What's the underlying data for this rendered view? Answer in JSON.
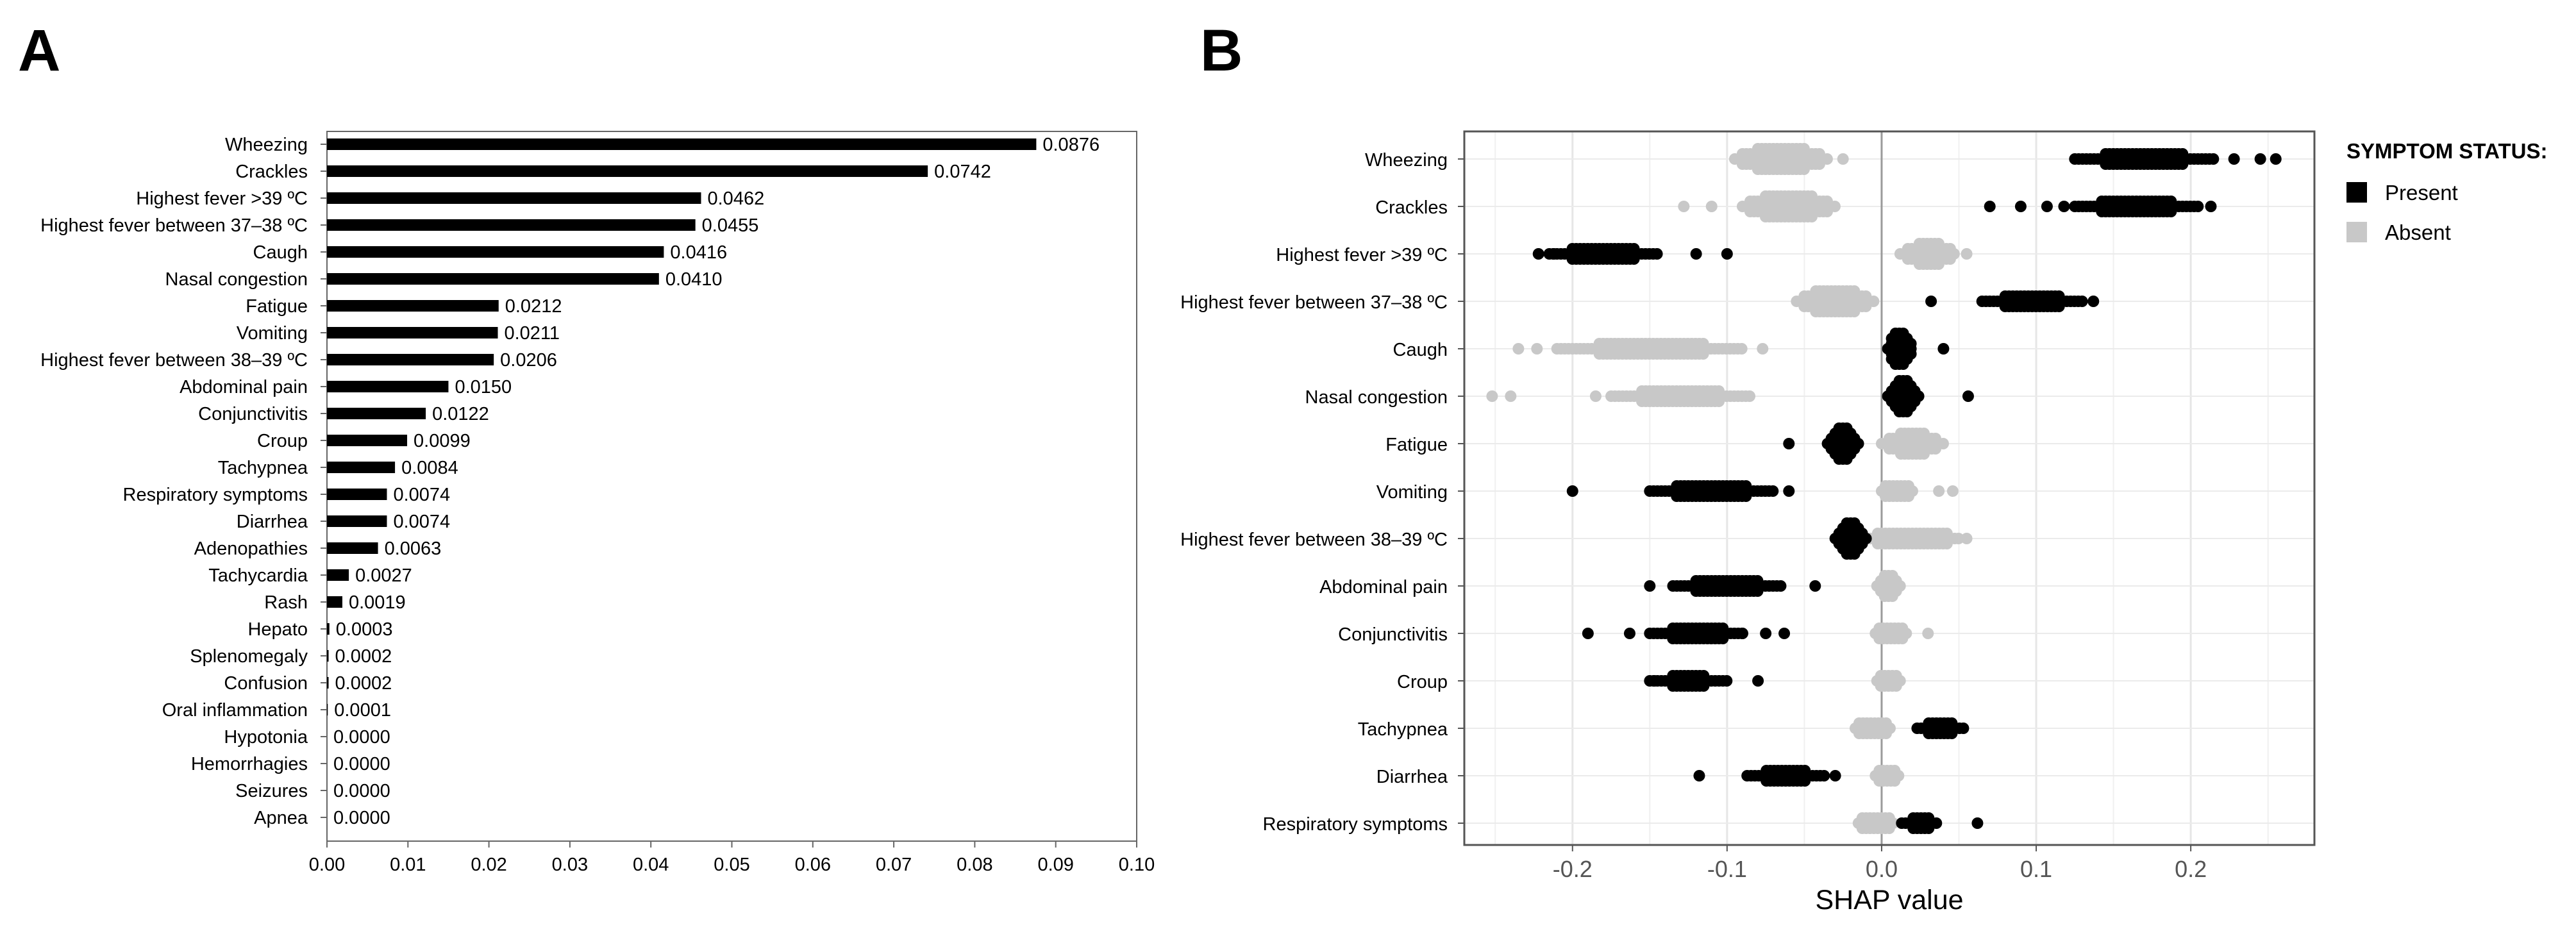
{
  "panels": {
    "a": "A",
    "b": "B"
  },
  "chart_data": [
    {
      "type": "bar",
      "orientation": "horizontal",
      "panel": "A",
      "title": "",
      "xlabel": "",
      "ylabel": "",
      "xlim": [
        0.0,
        0.1
      ],
      "xticks": [
        "0.00",
        "0.01",
        "0.02",
        "0.03",
        "0.04",
        "0.05",
        "0.06",
        "0.07",
        "0.08",
        "0.09",
        "0.10"
      ],
      "categories": [
        "Wheezing",
        "Crackles",
        "Highest fever >39 ºC",
        "Highest fever between 37–38 ºC",
        "Caugh",
        "Nasal congestion",
        "Fatigue",
        "Vomiting",
        "Highest fever between 38–39 ºC",
        "Abdominal pain",
        "Conjunctivitis",
        "Croup",
        "Tachypnea",
        "Respiratory symptoms",
        "Diarrhea ",
        "Adenopathies",
        "Tachycardia",
        "Rash",
        "Hepato",
        "Splenomegaly",
        "Confusion",
        "Oral inflammation",
        "Hypotonia",
        "Hemorrhagies",
        "Seizures",
        "Apnea"
      ],
      "values": [
        0.0876,
        0.0742,
        0.0462,
        0.0455,
        0.0416,
        0.041,
        0.0212,
        0.0211,
        0.0206,
        0.015,
        0.0122,
        0.0099,
        0.0084,
        0.0074,
        0.0074,
        0.0063,
        0.0027,
        0.0019,
        0.0003,
        0.0002,
        0.0002,
        0.0001,
        0.0,
        0.0,
        0.0,
        0.0
      ],
      "value_labels": [
        "0.0876",
        "0.0742",
        "0.0462",
        "0.0455",
        "0.0416",
        "0.0410",
        "0.0212",
        "0.0211",
        "0.0206",
        "0.0150",
        "0.0122",
        "0.0099",
        "0.0084",
        "0.0074",
        "0.0074",
        "0.0063",
        "0.0027",
        "0.0019",
        "0.0003",
        "0.0002",
        "0.0002",
        "0.0001",
        "0.0000",
        "0.0000",
        "0.0000",
        "0.0000"
      ],
      "bar_color": "#000000"
    },
    {
      "type": "scatter",
      "subtype": "beeswarm",
      "panel": "B",
      "title": "",
      "xlabel": "SHAP value",
      "ylabel": "",
      "xlim": [
        -0.27,
        0.28
      ],
      "xticks": [
        -0.2,
        -0.1,
        0.0,
        0.1,
        0.2
      ],
      "xtick_labels": [
        "-0.2",
        "-0.1",
        "0.0",
        "0.1",
        "0.2"
      ],
      "grid": true,
      "legend": {
        "title": "SYMPTOM STATUS:",
        "position": "right",
        "items": [
          {
            "name": "Present",
            "color": "#000000"
          },
          {
            "name": "Absent",
            "color": "#c8c8c8"
          }
        ]
      },
      "categories": [
        "Wheezing",
        "Crackles",
        "Highest fever >39 ºC",
        "Highest fever between 37–38 ºC",
        "Caugh",
        "Nasal congestion",
        "Fatigue",
        "Vomiting",
        "Highest fever between 38–39 ºC",
        "Abdominal pain",
        "Conjunctivitis",
        "Croup",
        "Tachypnea",
        "Diarrhea",
        "Respiratory symptoms"
      ],
      "series": [
        {
          "name": "Present",
          "color": "#000000",
          "clusters": [
            {
              "row": 0,
              "center": 0.17,
              "halfwidth": 0.045,
              "spread": 0.5
            },
            {
              "row": 1,
              "center": 0.165,
              "halfwidth": 0.04,
              "spread": 0.5
            },
            {
              "row": 2,
              "center": -0.18,
              "halfwidth": 0.035,
              "spread": 0.5
            },
            {
              "row": 3,
              "center": 0.098,
              "halfwidth": 0.033,
              "spread": 0.5
            },
            {
              "row": 4,
              "center": 0.012,
              "halfwidth": 0.008,
              "spread": 2.1
            },
            {
              "row": 5,
              "center": 0.014,
              "halfwidth": 0.01,
              "spread": 2.1
            },
            {
              "row": 6,
              "center": -0.025,
              "halfwidth": 0.01,
              "spread": 1.8
            },
            {
              "row": 7,
              "center": -0.11,
              "halfwidth": 0.04,
              "spread": 0.5
            },
            {
              "row": 8,
              "center": -0.02,
              "halfwidth": 0.01,
              "spread": 2.0
            },
            {
              "row": 9,
              "center": -0.1,
              "halfwidth": 0.035,
              "spread": 0.5
            },
            {
              "row": 10,
              "center": -0.12,
              "halfwidth": 0.03,
              "spread": 0.5
            },
            {
              "row": 11,
              "center": -0.125,
              "halfwidth": 0.025,
              "spread": 0.4
            },
            {
              "row": 12,
              "center": 0.038,
              "halfwidth": 0.015,
              "spread": 0.5
            },
            {
              "row": 13,
              "center": -0.062,
              "halfwidth": 0.025,
              "spread": 0.5
            },
            {
              "row": 14,
              "center": 0.025,
              "halfwidth": 0.012,
              "spread": 0.5
            }
          ],
          "outliers": [
            {
              "row": 0,
              "x": 0.245
            },
            {
              "row": 0,
              "x": 0.255
            },
            {
              "row": 0,
              "x": 0.228
            },
            {
              "row": 1,
              "x": 0.07
            },
            {
              "row": 1,
              "x": 0.09
            },
            {
              "row": 1,
              "x": 0.107
            },
            {
              "row": 1,
              "x": 0.118
            },
            {
              "row": 1,
              "x": 0.213
            },
            {
              "row": 2,
              "x": -0.222
            },
            {
              "row": 2,
              "x": -0.212
            },
            {
              "row": 2,
              "x": -0.12
            },
            {
              "row": 2,
              "x": -0.1
            },
            {
              "row": 3,
              "x": 0.032
            },
            {
              "row": 3,
              "x": 0.137
            },
            {
              "row": 4,
              "x": 0.04
            },
            {
              "row": 5,
              "x": 0.056
            },
            {
              "row": 6,
              "x": -0.06
            },
            {
              "row": 7,
              "x": -0.2
            },
            {
              "row": 7,
              "x": -0.06
            },
            {
              "row": 9,
              "x": -0.15
            },
            {
              "row": 9,
              "x": -0.043
            },
            {
              "row": 10,
              "x": -0.19
            },
            {
              "row": 10,
              "x": -0.163
            },
            {
              "row": 10,
              "x": -0.09
            },
            {
              "row": 10,
              "x": -0.075
            },
            {
              "row": 10,
              "x": -0.063
            },
            {
              "row": 11,
              "x": -0.147
            },
            {
              "row": 11,
              "x": -0.08
            },
            {
              "row": 13,
              "x": -0.118
            },
            {
              "row": 13,
              "x": -0.03
            },
            {
              "row": 14,
              "x": 0.062
            }
          ]
        },
        {
          "name": "Absent",
          "color": "#c8c8c8",
          "clusters": [
            {
              "row": 0,
              "center": -0.065,
              "halfwidth": 0.03,
              "spread": 1.4
            },
            {
              "row": 1,
              "center": -0.06,
              "halfwidth": 0.03,
              "spread": 1.4
            },
            {
              "row": 2,
              "center": 0.03,
              "halfwidth": 0.018,
              "spread": 1.2
            },
            {
              "row": 3,
              "center": -0.03,
              "halfwidth": 0.025,
              "spread": 1.4
            },
            {
              "row": 4,
              "center": -0.15,
              "halfwidth": 0.06,
              "spread": 0.5
            },
            {
              "row": 5,
              "center": -0.13,
              "halfwidth": 0.045,
              "spread": 0.5
            },
            {
              "row": 6,
              "center": 0.02,
              "halfwidth": 0.02,
              "spread": 1.3
            },
            {
              "row": 7,
              "center": 0.01,
              "halfwidth": 0.01,
              "spread": 1.0
            },
            {
              "row": 8,
              "center": 0.02,
              "halfwidth": 0.03,
              "spread": 0.8
            },
            {
              "row": 9,
              "center": 0.005,
              "halfwidth": 0.008,
              "spread": 1.2
            },
            {
              "row": 10,
              "center": 0.006,
              "halfwidth": 0.01,
              "spread": 1.0
            },
            {
              "row": 11,
              "center": 0.005,
              "halfwidth": 0.008,
              "spread": 1.0
            },
            {
              "row": 12,
              "center": -0.005,
              "halfwidth": 0.012,
              "spread": 1.0
            },
            {
              "row": 13,
              "center": 0.004,
              "halfwidth": 0.008,
              "spread": 1.0
            },
            {
              "row": 14,
              "center": -0.003,
              "halfwidth": 0.012,
              "spread": 1.0
            }
          ],
          "outliers": [
            {
              "row": 0,
              "x": -0.025
            },
            {
              "row": 1,
              "x": -0.128
            },
            {
              "row": 1,
              "x": -0.11
            },
            {
              "row": 2,
              "x": 0.055
            },
            {
              "row": 4,
              "x": -0.235
            },
            {
              "row": 4,
              "x": -0.223
            },
            {
              "row": 4,
              "x": -0.077
            },
            {
              "row": 5,
              "x": -0.252
            },
            {
              "row": 5,
              "x": -0.24
            },
            {
              "row": 5,
              "x": -0.185
            },
            {
              "row": 7,
              "x": 0.037
            },
            {
              "row": 7,
              "x": 0.046
            },
            {
              "row": 8,
              "x": 0.055
            },
            {
              "row": 8,
              "x": -0.02
            },
            {
              "row": 10,
              "x": 0.03
            }
          ]
        }
      ]
    }
  ]
}
